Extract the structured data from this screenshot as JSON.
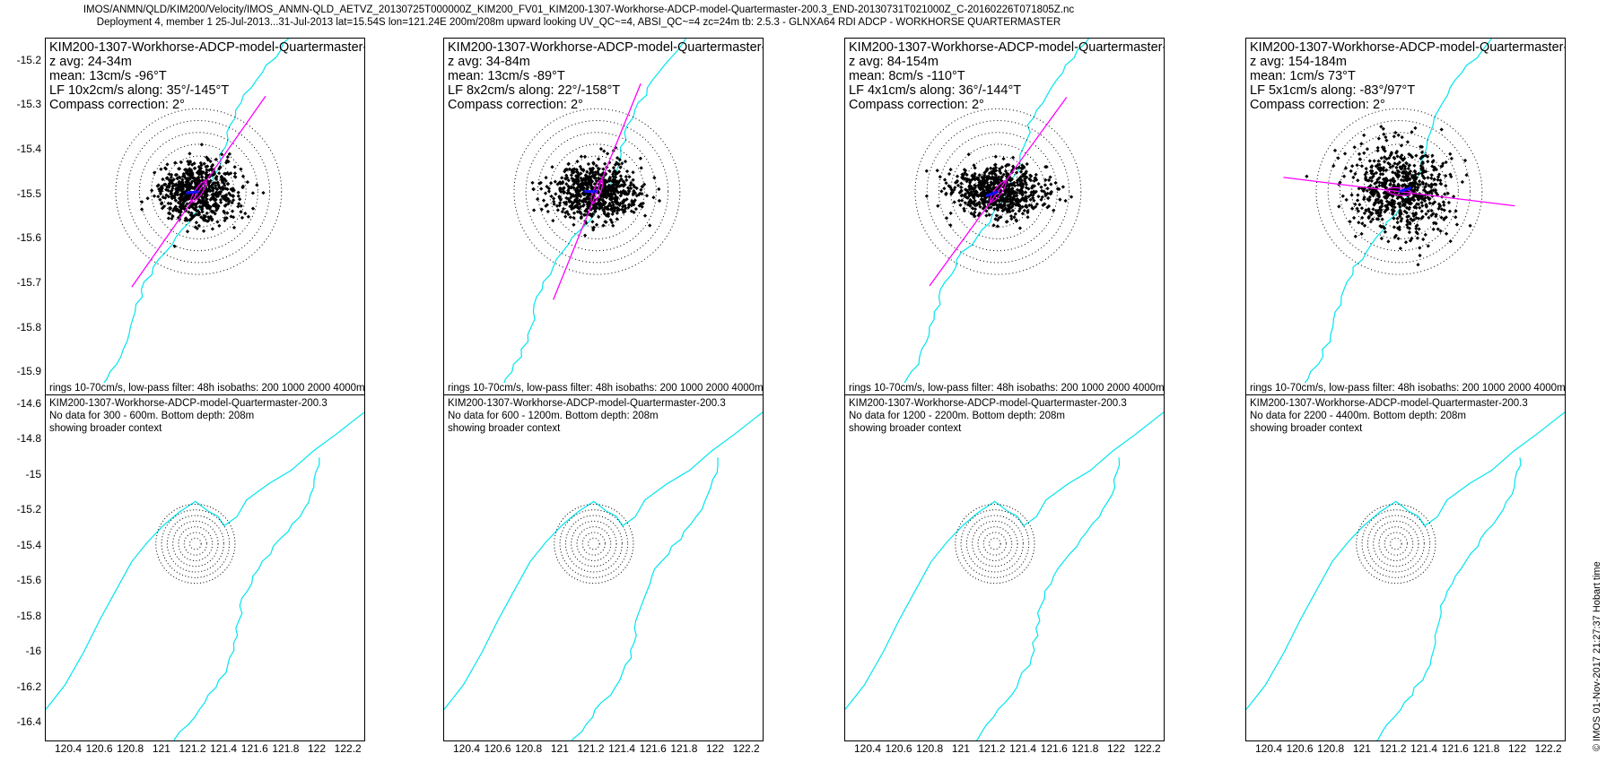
{
  "header": {
    "line1": "IMOS/ANMN/QLD/KIM200/Velocity/IMOS_ANMN-QLD_AETVZ_20130725T000000Z_KIM200_FV01_KIM200-1307-Workhorse-ADCP-model-Quartermaster-200.3_END-20130731T021000Z_C-20160226T071805Z.nc",
    "line2": "Deployment 4, member 1 25-Jul-2013...31-Jul-2013 lat=15.54S lon=121.24E 200m/208m upward looking UV_QC~=4, ABSI_QC~=4 zc=24m tb: 2.5.3 - GLNXA64 RDI ADCP - WORKHORSE QUARTERMASTER"
  },
  "credit": "© IMOS 01-Nov-2017 21:27:37 Hobart time",
  "colors": {
    "scatter": "#000000",
    "isobath": "#00e5ee",
    "axis_line": "#ff00ff",
    "rings": "#000000"
  },
  "footnote": "rings 10-70cm/s, low-pass filter: 48h isobaths: 200 1000 2000 4000m",
  "top_yticks": [
    "-15.2",
    "-15.3",
    "-15.4",
    "-15.5",
    "-15.6",
    "-15.7",
    "-15.8",
    "-15.9"
  ],
  "bottom_yticks": [
    "-14.6",
    "-14.8",
    "-15",
    "-15.2",
    "-15.4",
    "-15.6",
    "-15.8",
    "-16",
    "-16.2",
    "-16.4"
  ],
  "xticks": [
    "120.4",
    "120.6",
    "120.8",
    "121",
    "121.2",
    "121.4",
    "121.6",
    "121.8",
    "122",
    "122.2"
  ],
  "panels": [
    {
      "top": {
        "instrument": "KIM200-1307-Workhorse-ADCP-model-Quartermaster-200.3",
        "zavg": "z avg: 24-34m",
        "mean": "mean: 13cm/s -96°T",
        "lf": "LF 10x2cm/s along: 35°/-145°T",
        "compass": "Compass correction: 2°",
        "axis_deg": 35,
        "mean_deg": -96,
        "cloud_spread_x": 1.1,
        "cloud_spread_y": 0.8
      },
      "bottom": {
        "instrument": "KIM200-1307-Workhorse-ADCP-model-Quartermaster-200.3",
        "nodata": "No data for 300 - 600m. Bottom depth: 208m",
        "context": "showing broader context"
      }
    },
    {
      "top": {
        "instrument": "KIM200-1307-Workhorse-ADCP-model-Quartermaster-200.3",
        "zavg": "z avg: 34-84m",
        "mean": "mean: 13cm/s -89°T",
        "lf": "LF 8x2cm/s along: 22°/-158°T",
        "compass": "Compass correction: 2°",
        "axis_deg": 22,
        "mean_deg": -89,
        "cloud_spread_x": 1.2,
        "cloud_spread_y": 0.75
      },
      "bottom": {
        "instrument": "KIM200-1307-Workhorse-ADCP-model-Quartermaster-200.3",
        "nodata": "No data for 600 - 1200m. Bottom depth: 208m",
        "context": "showing broader context"
      }
    },
    {
      "top": {
        "instrument": "KIM200-1307-Workhorse-ADCP-model-Quartermaster-200.3",
        "zavg": "z avg: 84-154m",
        "mean": "mean: 8cm/s -110°T",
        "lf": "LF 4x1cm/s along: 36°/-144°T",
        "compass": "Compass correction: 2°",
        "axis_deg": 36,
        "mean_deg": -110,
        "cloud_spread_x": 1.3,
        "cloud_spread_y": 0.7
      },
      "bottom": {
        "instrument": "KIM200-1307-Workhorse-ADCP-model-Quartermaster-200.3",
        "nodata": "No data for 1200 - 2200m. Bottom depth: 208m",
        "context": "showing broader context"
      }
    },
    {
      "top": {
        "instrument": "KIM200-1307-Workhorse-ADCP-model-Quartermaster-200.3",
        "zavg": "z avg: 154-184m",
        "mean": "mean: 1cm/s 73°T",
        "lf": "LF 5x1cm/s along: -83°/97°T",
        "compass": "Compass correction: 2°",
        "axis_deg": -83,
        "mean_deg": 73,
        "cloud_spread_x": 1.25,
        "cloud_spread_y": 1.2
      },
      "bottom": {
        "instrument": "KIM200-1307-Workhorse-ADCP-model-Quartermaster-200.3",
        "nodata": "No data for 2200 - 4400m. Bottom depth: 208m",
        "context": "showing broader context"
      }
    }
  ],
  "chart_data": {
    "type": "scatter",
    "center": {
      "lat": -15.54,
      "lon": 121.24
    },
    "top_ylim": [
      -15.95,
      -15.15
    ],
    "bottom_ylim": [
      -16.5,
      -14.55
    ],
    "bottom_xlim": [
      120.25,
      122.3
    ],
    "rings_cm_s": [
      10,
      20,
      30,
      40,
      50,
      60,
      70
    ],
    "isobaths_m": [
      200,
      1000,
      2000,
      4000
    ],
    "grid": false
  }
}
